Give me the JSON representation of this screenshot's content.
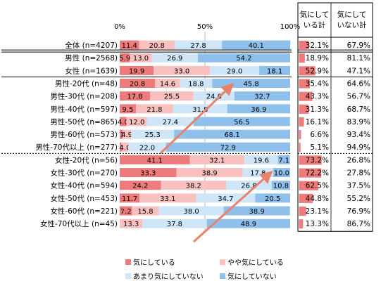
{
  "chart_data": {
    "type": "bar",
    "stacked": true,
    "orientation": "horizontal",
    "percent_axis": {
      "ticks": [
        "0%",
        "50%",
        "100%"
      ],
      "range": [
        0,
        100
      ]
    },
    "categories": [
      "全体 (n=4207)",
      "男性 (n=2568)",
      "女性 (n=1639)",
      "男性-20代 (n=48)",
      "男性-30代 (n=208)",
      "男性-40代 (n=597)",
      "男性-50代 (n=865)",
      "男性-60代 (n=573)",
      "男性-70代以上 (n=277)",
      "女性-20代 (n=56)",
      "女性-30代 (n=270)",
      "女性-40代 (n=594)",
      "女性-50代 (n=453)",
      "女性-60代 (n=221)",
      "女性-70代以上 (n=45)"
    ],
    "series": [
      {
        "name": "気にしている",
        "color": "#ee7b7b",
        "values": [
          11.4,
          5.9,
          19.9,
          20.8,
          17.8,
          9.5,
          4.0,
          1.7,
          1.1,
          41.1,
          33.3,
          24.2,
          11.7,
          7.2,
          0
        ],
        "labels": [
          "11.4",
          "5.9",
          "19.9",
          "20.8",
          "17.8",
          "9.5",
          "4.0",
          "1.7",
          "1.1",
          "41.1",
          "33.3",
          "24.2",
          "11.7",
          "7.2",
          ""
        ]
      },
      {
        "name": "やや気にしている",
        "color": "#f9c0c0",
        "values": [
          20.8,
          13.0,
          33.0,
          14.6,
          25.5,
          21.8,
          12.0,
          4.9,
          4.0,
          32.1,
          38.9,
          38.2,
          33.1,
          15.8,
          13.3
        ],
        "labels": [
          "20.8",
          "13.0",
          "33.0",
          "14.6",
          "25.5",
          "21.8",
          "12.0",
          "4.9",
          "4.0",
          "32.1",
          "38.9",
          "38.2",
          "33.1",
          "15.8",
          "13.3"
        ]
      },
      {
        "name": "あまり気にしていない",
        "color": "#cfe6f8",
        "values": [
          27.8,
          26.9,
          29.0,
          18.8,
          24.0,
          31.8,
          27.4,
          25.3,
          22.0,
          19.6,
          17.8,
          26.8,
          34.7,
          38.0,
          37.8
        ],
        "labels": [
          "27.8",
          "26.9",
          "29.0",
          "18.8",
          "24.0",
          "31.8",
          "27.4",
          "25.3",
          "22.0",
          "19.6",
          "17.8",
          "26.8",
          "34.7",
          "38.0",
          "37.8"
        ]
      },
      {
        "name": "気にしていない",
        "color": "#8fc0ec",
        "values": [
          40.1,
          54.2,
          18.1,
          45.8,
          32.7,
          36.9,
          56.5,
          68.1,
          72.9,
          7.1,
          10.0,
          10.8,
          20.5,
          38.9,
          48.9
        ],
        "labels": [
          "40.1",
          "54.2",
          "18.1",
          "45.8",
          "32.7",
          "36.9",
          "56.5",
          "68.1",
          "72.9",
          "7.1",
          "10.0",
          "10.8",
          "20.5",
          "38.9",
          "48.9"
        ]
      }
    ],
    "summary_headers": [
      "気にして\nいる計",
      "気にして\nいない計"
    ],
    "summary_care": [
      "32.1%",
      "18.9%",
      "52.9%",
      "35.4%",
      "43.3%",
      "31.3%",
      "16.1%",
      "6.6%",
      "5.1%",
      "73.2%",
      "72.2%",
      "62.5%",
      "44.8%",
      "23.1%",
      "13.3%"
    ],
    "summary_care_values": [
      32.1,
      18.9,
      52.9,
      35.4,
      43.3,
      31.3,
      16.1,
      6.6,
      5.1,
      73.2,
      72.2,
      62.5,
      44.8,
      23.1,
      13.3
    ],
    "summary_not": [
      "67.9%",
      "81.1%",
      "47.1%",
      "64.6%",
      "56.7%",
      "68.7%",
      "83.9%",
      "93.4%",
      "94.9%",
      "26.8%",
      "27.8%",
      "37.5%",
      "55.2%",
      "76.9%",
      "86.7%"
    ],
    "legend": [
      "気にしている",
      "やや気にしている",
      "あまり気にしていない",
      "気にしていない"
    ],
    "arrow_color": "#e8826a",
    "summary_bar_color": "#ee7b7b"
  }
}
